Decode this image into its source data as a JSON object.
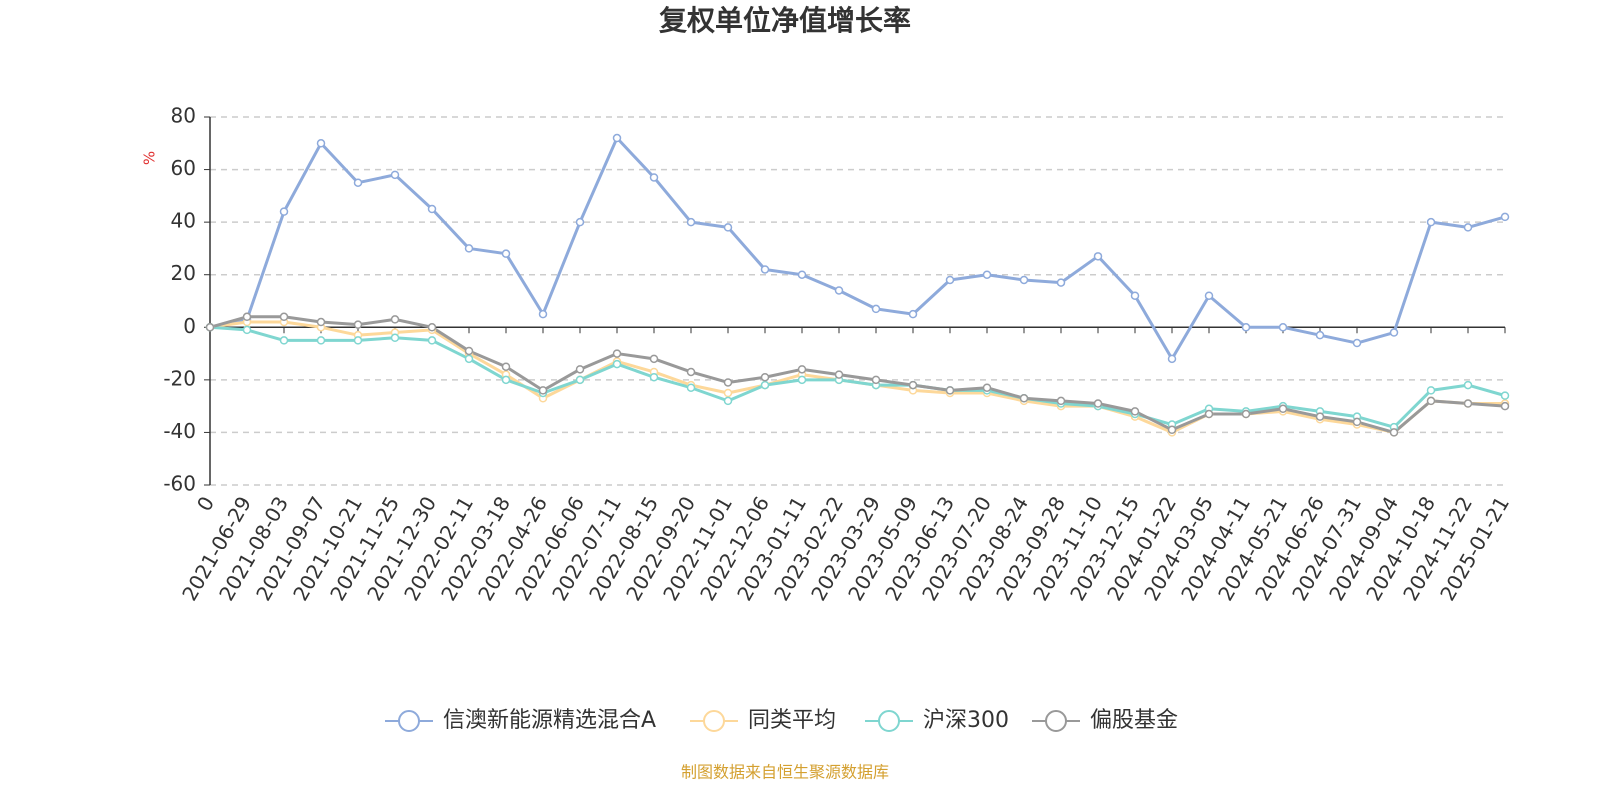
{
  "chart_data": {
    "type": "line",
    "title": "复权单位净值增长率",
    "y_label": "%",
    "source": "制图数据来自恒生聚源数据库",
    "categories": [
      "0",
      "2021-06-29",
      "2021-08-03",
      "2021-09-07",
      "2021-10-21",
      "2021-11-25",
      "2021-12-30",
      "2022-02-11",
      "2022-03-18",
      "2022-04-26",
      "2022-06-06",
      "2022-07-11",
      "2022-08-15",
      "2022-09-20",
      "2022-11-01",
      "2022-12-06",
      "2023-01-11",
      "2023-02-22",
      "2023-03-29",
      "2023-05-09",
      "2023-06-13",
      "2023-07-20",
      "2023-08-24",
      "2023-09-28",
      "2023-11-10",
      "2023-12-15",
      "2024-01-22",
      "2024-03-05",
      "2024-04-11",
      "2024-05-21",
      "2024-06-26",
      "2024-07-31",
      "2024-09-04",
      "2024-10-18",
      "2024-11-22",
      "2025-01-21"
    ],
    "series": [
      {
        "name": "信澳新能源精选混合A",
        "color": "#8eaadb",
        "values": [
          0,
          3,
          44,
          70,
          55,
          58,
          45,
          30,
          28,
          5,
          40,
          72,
          57,
          40,
          38,
          22,
          20,
          14,
          7,
          5,
          18,
          20,
          18,
          17,
          27,
          12,
          -12,
          12,
          0,
          0,
          -3,
          -6,
          -2,
          40,
          38,
          42
        ]
      },
      {
        "name": "同类平均",
        "color": "#fdd89a",
        "values": [
          0,
          2,
          2,
          0,
          -3,
          -2,
          -1,
          -10,
          -18,
          -27,
          -20,
          -13,
          -17,
          -22,
          -25,
          -22,
          -18,
          -20,
          -22,
          -24,
          -25,
          -25,
          -28,
          -30,
          -30,
          -34,
          -40,
          -33,
          -33,
          -32,
          -35,
          -37,
          -40,
          -28,
          -29,
          -29
        ]
      },
      {
        "name": "沪深300",
        "color": "#7fd6d0",
        "values": [
          0,
          -1,
          -5,
          -5,
          -5,
          -4,
          -5,
          -12,
          -20,
          -25,
          -20,
          -14,
          -19,
          -23,
          -28,
          -22,
          -20,
          -20,
          -22,
          -22,
          -24,
          -24,
          -27,
          -29,
          -30,
          -33,
          -37,
          -31,
          -32,
          -30,
          -32,
          -34,
          -38,
          -24,
          -22,
          -26
        ]
      },
      {
        "name": "偏股基金",
        "color": "#999999",
        "values": [
          0,
          4,
          4,
          2,
          1,
          3,
          0,
          -9,
          -15,
          -24,
          -16,
          -10,
          -12,
          -17,
          -21,
          -19,
          -16,
          -18,
          -20,
          -22,
          -24,
          -23,
          -27,
          -28,
          -29,
          -32,
          -39,
          -33,
          -33,
          -31,
          -34,
          -36,
          -40,
          -28,
          -29,
          -30
        ]
      }
    ],
    "ylim": [
      -60,
      80
    ],
    "yticks": [
      -60,
      -40,
      -20,
      0,
      20,
      40,
      60,
      80
    ],
    "grid": true
  }
}
